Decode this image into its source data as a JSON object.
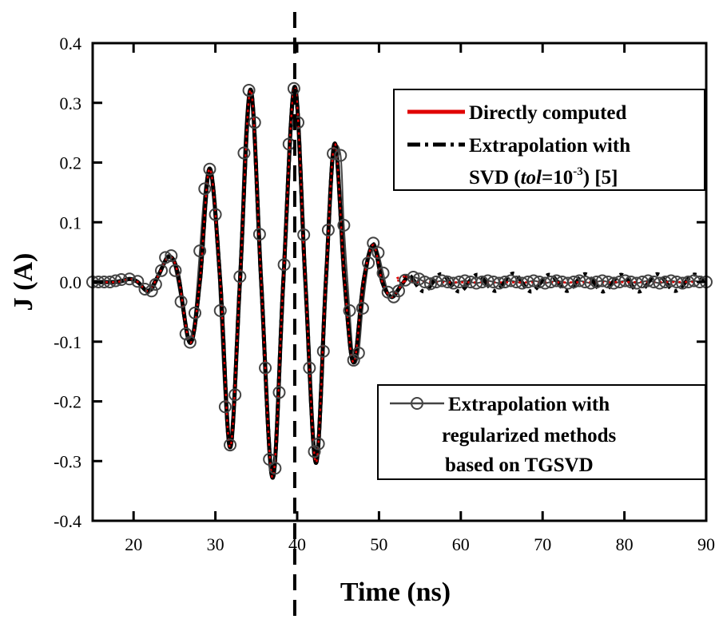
{
  "chart_data": {
    "type": "line",
    "xlabel": "Time (ns)",
    "ylabel": "J (A)",
    "xlim": [
      15,
      90
    ],
    "ylim": [
      -0.4,
      0.4
    ],
    "xticks": [
      20,
      30,
      40,
      50,
      60,
      70,
      80,
      90
    ],
    "xtick_labels": [
      "20",
      "30",
      "40",
      "50",
      "60",
      "70",
      "80",
      "90"
    ],
    "yticks": [
      0.4,
      0.3,
      0.2,
      0.1,
      0.0,
      -0.1,
      -0.2,
      -0.3,
      -0.4
    ],
    "ytick_labels": [
      "0.4",
      "0.3",
      "0.2",
      "0.1",
      "0.0",
      "-0.1",
      "-0.2",
      "-0.3",
      "-0.4"
    ],
    "grid": false,
    "vertical_marker_x": 39.7,
    "series": [
      {
        "name": "Directly computed",
        "color": "#e00000",
        "style": "solid",
        "x": [
          15,
          18,
          19.5,
          20.5,
          21.8,
          23,
          24.3,
          25.4,
          26.9,
          28.1,
          29.3,
          30.6,
          31.8,
          33.0,
          34.3,
          35.6,
          37.0,
          38.3,
          39.7,
          41.0,
          42.3,
          43.5,
          44.6,
          45.8,
          46.9,
          48.1,
          49.3,
          50.4,
          51.5,
          52.5,
          53.6,
          55,
          90
        ],
        "y": [
          0,
          0,
          0.005,
          0,
          -0.015,
          0.01,
          0.042,
          0.015,
          -0.102,
          0.0,
          0.19,
          0.0,
          -0.277,
          0.0,
          0.322,
          0.0,
          -0.328,
          0.0,
          0.327,
          0.0,
          -0.303,
          0.0,
          0.232,
          0.0,
          -0.135,
          0.0,
          0.062,
          0.0,
          -0.025,
          -0.01,
          0.01,
          0.0,
          0.0
        ]
      },
      {
        "name": "Extrapolation with SVD (tol=10^-3) [5]",
        "color": "#000000",
        "style": "dash-dot",
        "x": [
          15,
          18,
          19.5,
          20.5,
          21.8,
          23,
          24.3,
          25.4,
          26.9,
          28.1,
          29.3,
          30.6,
          31.8,
          33.0,
          34.3,
          35.6,
          37.0,
          38.3,
          39.7,
          41.0,
          42.3,
          43.5,
          44.6,
          45.8,
          46.9,
          48.1,
          49.3,
          50.4,
          51.5,
          52.5,
          53.6,
          55.5,
          57.6,
          59.8,
          62.0,
          64.2,
          66.4,
          68.6,
          70.8,
          73.0,
          75.2,
          77.4,
          79.6,
          81.8,
          84.0,
          86.2,
          88.4,
          90
        ],
        "y": [
          0,
          0,
          0.005,
          0,
          -0.015,
          0.01,
          0.042,
          0.015,
          -0.102,
          0.0,
          0.19,
          0.0,
          -0.277,
          0.0,
          0.322,
          0.0,
          -0.328,
          0.0,
          0.327,
          0.0,
          -0.303,
          0.0,
          0.232,
          0.0,
          -0.135,
          0.0,
          0.062,
          0.0,
          -0.025,
          -0.01,
          0.012,
          -0.016,
          0.013,
          -0.016,
          0.012,
          -0.015,
          0.014,
          -0.016,
          0.012,
          -0.015,
          0.013,
          -0.016,
          0.012,
          -0.016,
          0.013,
          -0.015,
          0.012,
          0.0
        ]
      },
      {
        "name": "Extrapolation with regularized methods based on TGSVD",
        "color": "#444444",
        "style": "line-circle",
        "x": [
          15.0,
          15.7,
          16.4,
          17.1,
          17.8,
          18.5,
          19.5,
          20.5,
          21.4,
          22.2,
          22.7,
          23.4,
          23.9,
          24.6,
          25.1,
          25.8,
          26.4,
          26.9,
          27.5,
          28.1,
          28.7,
          29.3,
          30.0,
          30.6,
          31.2,
          31.8,
          32.4,
          33.0,
          33.5,
          34.1,
          34.8,
          35.4,
          36.1,
          36.6,
          37.3,
          37.8,
          38.4,
          39.0,
          39.6,
          40.1,
          40.8,
          41.5,
          42.1,
          42.6,
          43.2,
          43.8,
          44.4,
          45.3,
          45.7,
          46.4,
          46.9,
          47.5,
          48.0,
          48.7,
          49.3,
          49.9,
          50.5,
          51.1,
          51.8,
          52.4,
          53.2,
          54.2,
          54.9,
          55.6,
          56.3,
          57.0,
          57.7,
          58.4,
          59.1,
          59.8,
          60.5,
          61.2,
          61.9,
          62.6,
          63.3,
          64.0,
          64.7,
          65.4,
          66.1,
          66.8,
          67.5,
          68.2,
          68.9,
          69.6,
          70.3,
          71.0,
          71.7,
          72.4,
          73.1,
          73.8,
          74.5,
          75.2,
          75.9,
          76.6,
          77.3,
          78.0,
          78.7,
          79.4,
          80.1,
          80.8,
          81.5,
          82.2,
          82.9,
          83.6,
          84.3,
          85.0,
          85.7,
          86.4,
          87.1,
          87.8,
          88.5,
          89.2,
          90.0
        ],
        "y": [
          0,
          0,
          0,
          0,
          0.002,
          0.004,
          0.005,
          0.001,
          -0.012,
          -0.015,
          -0.004,
          0.019,
          0.041,
          0.044,
          0.019,
          -0.033,
          -0.087,
          -0.101,
          -0.052,
          0.052,
          0.156,
          0.189,
          0.113,
          -0.048,
          -0.209,
          -0.273,
          -0.189,
          0.009,
          0.216,
          0.321,
          0.267,
          0.08,
          -0.144,
          -0.297,
          -0.312,
          -0.185,
          0.029,
          0.231,
          0.324,
          0.267,
          0.079,
          -0.144,
          -0.284,
          -0.271,
          -0.116,
          0.087,
          0.215,
          0.212,
          0.095,
          -0.048,
          -0.131,
          -0.119,
          -0.044,
          0.032,
          0.065,
          0.049,
          0.015,
          -0.017,
          -0.025,
          -0.015,
          0.003,
          0.008,
          0.005,
          0.0,
          -0.003,
          0.0,
          0.002,
          0.0,
          -0.002,
          0.0,
          0.002,
          0.0,
          -0.002,
          0.0,
          0.002,
          0.0,
          -0.002,
          0.0,
          0.002,
          0.0,
          -0.002,
          0.0,
          0.002,
          0.0,
          -0.002,
          0.0,
          0.002,
          0.0,
          -0.002,
          0.0,
          0.002,
          0.0,
          -0.002,
          0.0,
          0.002,
          0.0,
          -0.002,
          0.0,
          0.002,
          0.0,
          -0.002,
          0.0,
          0.002,
          0.0,
          -0.002,
          0.0,
          0.002,
          0.0,
          -0.002,
          0.0,
          0.002,
          0.0,
          0.0
        ]
      }
    ],
    "legend": {
      "top_right": {
        "entry1": "Directly computed",
        "entry2_line1": "Extrapolation with",
        "entry2_line2_prefix": "SVD (",
        "entry2_line2_italic": "tol",
        "entry2_line2_eq": "=10",
        "entry2_line2_sup": "-3",
        "entry2_line2_suffix": ") [5]"
      },
      "bottom_right": {
        "line1": "Extrapolation with",
        "line2": "regularized methods",
        "line3": "based on TGSVD"
      }
    }
  }
}
